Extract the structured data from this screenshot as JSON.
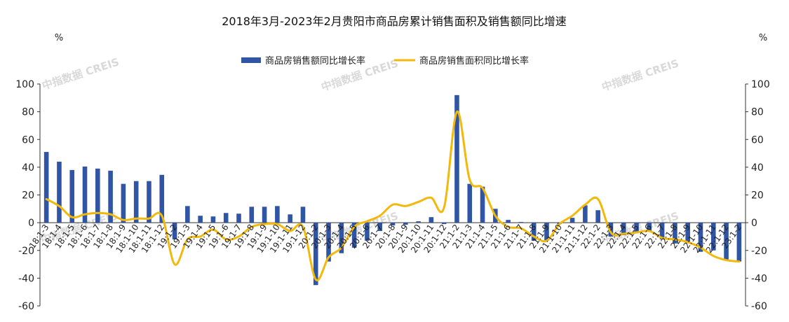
{
  "watermark": "中指数据 CREIS",
  "chart_data": {
    "type": "bar",
    "title": "2018年3月-2023年2月贵阳市商品房累计销售面积及销售额同比增速",
    "y_left_unit": "%",
    "y_right_unit": "%",
    "ylim_left": [
      -60,
      100
    ],
    "ylim_right": [
      -60,
      100
    ],
    "yticks_left": [
      "100",
      "80",
      "60",
      "40",
      "20",
      "0",
      "-20",
      "-40",
      "-60"
    ],
    "yticks_right": [
      "100",
      "80",
      "60",
      "40",
      "20",
      "0",
      "-20",
      "-40",
      "-60"
    ],
    "legend_position": "top-center",
    "categories": [
      "18:1-3",
      "18:1-4",
      "18:1-5",
      "18:1-6",
      "18:1-7",
      "18:1-8",
      "18:1-9",
      "18:1-10",
      "18:1-11",
      "18:1-12",
      "19:1-2",
      "19:1-3",
      "19:1-4",
      "19:1-5",
      "19:1-6",
      "19:1-7",
      "19:1-8",
      "19:1-9",
      "19:1-10",
      "19:1-11",
      "19:1-12",
      "20:1-2",
      "20:1-3",
      "20:1-4",
      "20:1-5",
      "20:1-6",
      "20:1-7",
      "20:1-8",
      "20:1-9",
      "20:1-10",
      "20:1-11",
      "20:1-12",
      "21:1-2",
      "21:1-3",
      "21:1-4",
      "21:1-5",
      "21:1-6",
      "21:1-7",
      "21:1-8",
      "21:1-9",
      "21:1-10",
      "21:1-11",
      "21:1-12",
      "22:1-2",
      "22:1-3",
      "22:1-4",
      "22:1-5",
      "22:1-6",
      "22:1-7",
      "22:1-8",
      "22:1-9",
      "22:1-10",
      "22:1-11",
      "22:1-12",
      "23:1-2"
    ],
    "series": [
      {
        "name": "商品房销售额同比增长率",
        "type": "bar",
        "axis": "left",
        "color": "#2f55a4",
        "values": [
          51,
          44,
          38,
          40.5,
          39,
          37.5,
          28,
          30,
          30,
          34.5,
          -12,
          12,
          5,
          4.5,
          7,
          6.5,
          11.5,
          11.5,
          12,
          6,
          11.5,
          -45,
          -28,
          -22,
          -18,
          -13,
          -6,
          -2,
          -1.5,
          1,
          4,
          -1,
          92,
          28,
          26,
          10,
          2,
          0.5,
          -13,
          -13,
          -1,
          3.5,
          12.5,
          9,
          -10,
          -9,
          -7,
          -6,
          -12,
          -15,
          -14,
          -21,
          -20,
          -27,
          -28
        ]
      },
      {
        "name": "商品房销售面积同比增长率",
        "type": "line",
        "axis": "right",
        "color": "#f2b90c",
        "values": [
          17,
          12,
          4,
          6,
          7,
          6,
          2,
          3,
          3,
          5,
          -30,
          -12,
          -10,
          -5,
          -12,
          -10,
          -3,
          -1,
          -1,
          -6,
          -3,
          -41,
          -25,
          -18,
          -3,
          1,
          5,
          13,
          12,
          15,
          18,
          11,
          80,
          31,
          25,
          5,
          -3,
          -4,
          -10,
          -13,
          -1,
          5,
          13,
          17,
          -7,
          -8,
          -7,
          -6,
          -11,
          -12,
          -14,
          -18,
          -24,
          -27,
          -28
        ]
      }
    ]
  }
}
